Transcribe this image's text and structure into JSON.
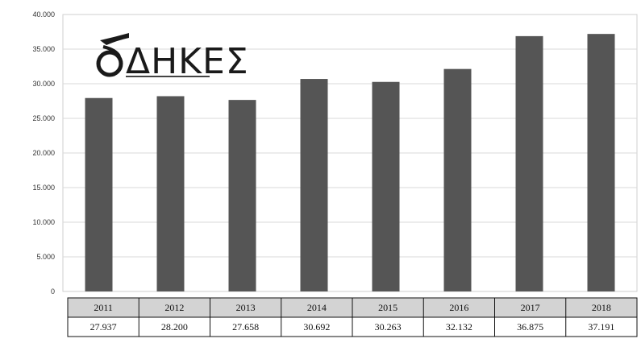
{
  "logo": {
    "text": "ΔΗΚΕΣ"
  },
  "chart_data": {
    "type": "bar",
    "categories": [
      "2011",
      "2012",
      "2013",
      "2014",
      "2015",
      "2016",
      "2017",
      "2018"
    ],
    "values": [
      27937,
      28200,
      27658,
      30692,
      30263,
      32132,
      36875,
      37191
    ],
    "value_labels": [
      "27.937",
      "28.200",
      "27.658",
      "30.692",
      "30.263",
      "32.132",
      "36.875",
      "37.191"
    ],
    "ylim": [
      0,
      40000
    ],
    "yticks": [
      0,
      5000,
      10000,
      15000,
      20000,
      25000,
      30000,
      35000,
      40000
    ],
    "ytick_labels": [
      "0",
      "5.000",
      "10.000",
      "15.000",
      "20.000",
      "25.000",
      "30.000",
      "35.000",
      "40.000"
    ],
    "grid": true,
    "title": "",
    "xlabel": "",
    "ylabel": "",
    "colors": {
      "bar": "#555555",
      "header": "#d3d3d3",
      "grid": "#d8d8d8"
    }
  }
}
